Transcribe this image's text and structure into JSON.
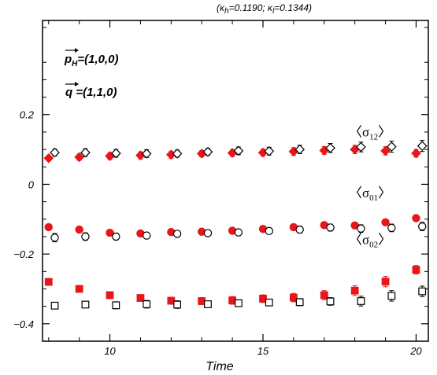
{
  "chart_data": {
    "type": "scatter",
    "title": "",
    "subtitle": {
      "prefix": "(κ",
      "h_sub": "h",
      "h_val": "=0.1190;  κ",
      "l_sub": "l",
      "l_val": "=0.1344)"
    },
    "xlabel": "Time",
    "ylabel": "",
    "xlim": [
      7.8,
      20.4
    ],
    "ylim": [
      -0.45,
      0.47
    ],
    "x_ticks": [
      10,
      15,
      20
    ],
    "y_ticks": [
      -0.4,
      -0.2,
      0,
      0.2
    ],
    "x_tick_labels": [
      "10",
      "15",
      "20"
    ],
    "y_tick_labels": [
      "−0.4",
      "−0.2",
      "0",
      "0.2"
    ],
    "grid": false,
    "legend": "none",
    "annotations": {
      "p": {
        "vec": "p",
        "sub": "H",
        "value": "=(1,0,0)"
      },
      "q": {
        "vec": "q",
        "value": " =(1,1,0)"
      }
    },
    "group_labels": [
      {
        "sigma_sub": "12",
        "y": 0.137
      },
      {
        "sigma_sub": "01",
        "y": -0.037
      },
      {
        "sigma_sub": "02",
        "y": -0.172
      }
    ],
    "colors": {
      "red": "#e8151b",
      "black": "#000000"
    },
    "series": [
      {
        "marker": "diamond",
        "fill": "red",
        "x_offset": 0,
        "x": [
          8,
          9,
          10,
          11,
          12,
          13,
          14,
          15,
          16,
          17,
          18,
          19,
          20
        ],
        "y": [
          0.075,
          0.078,
          0.081,
          0.083,
          0.085,
          0.088,
          0.09,
          0.091,
          0.094,
          0.097,
          0.1,
          0.096,
          0.089
        ],
        "err": [
          0.007,
          0.009,
          0.01,
          0.01,
          0.01,
          0.009,
          0.01,
          0.01,
          0.011,
          0.011,
          0.012,
          0.012,
          0.011
        ]
      },
      {
        "marker": "diamond",
        "fill": "open",
        "x_offset": 0.2,
        "x": [
          8,
          9,
          10,
          11,
          12,
          13,
          14,
          15,
          16,
          17,
          18,
          19,
          20
        ],
        "y": [
          0.091,
          0.091,
          0.089,
          0.088,
          0.088,
          0.093,
          0.096,
          0.095,
          0.1,
          0.104,
          0.107,
          0.108,
          0.11
        ],
        "err": [
          0.01,
          0.011,
          0.011,
          0.011,
          0.01,
          0.01,
          0.011,
          0.011,
          0.012,
          0.013,
          0.014,
          0.016,
          0.016
        ]
      },
      {
        "marker": "circle",
        "fill": "red",
        "x_offset": 0,
        "x": [
          8,
          9,
          10,
          11,
          12,
          13,
          14,
          15,
          16,
          17,
          18,
          19,
          20
        ],
        "y": [
          -0.123,
          -0.13,
          -0.139,
          -0.141,
          -0.137,
          -0.136,
          -0.133,
          -0.128,
          -0.123,
          -0.117,
          -0.118,
          -0.109,
          -0.097
        ],
        "err": [
          0.006,
          0.007,
          0.007,
          0.007,
          0.007,
          0.007,
          0.007,
          0.007,
          0.007,
          0.007,
          0.008,
          0.008,
          0.008
        ]
      },
      {
        "marker": "circle",
        "fill": "open",
        "x_offset": 0.2,
        "x": [
          8,
          9,
          10,
          11,
          12,
          13,
          14,
          15,
          16,
          17,
          18,
          19,
          20
        ],
        "y": [
          -0.153,
          -0.15,
          -0.15,
          -0.147,
          -0.142,
          -0.14,
          -0.138,
          -0.134,
          -0.13,
          -0.124,
          -0.127,
          -0.125,
          -0.121
        ],
        "err": [
          0.012,
          0.011,
          0.01,
          0.009,
          0.009,
          0.009,
          0.009,
          0.009,
          0.01,
          0.01,
          0.011,
          0.011,
          0.012
        ]
      },
      {
        "marker": "square",
        "fill": "red",
        "x_offset": 0,
        "x": [
          8,
          9,
          10,
          11,
          12,
          13,
          14,
          15,
          16,
          17,
          18,
          19,
          20
        ],
        "y": [
          -0.28,
          -0.3,
          -0.318,
          -0.326,
          -0.334,
          -0.335,
          -0.333,
          -0.328,
          -0.325,
          -0.318,
          -0.305,
          -0.279,
          -0.245
        ],
        "err": [
          0.006,
          0.007,
          0.008,
          0.009,
          0.01,
          0.01,
          0.011,
          0.011,
          0.012,
          0.013,
          0.014,
          0.015,
          0.012
        ]
      },
      {
        "marker": "square",
        "fill": "open",
        "x_offset": 0.2,
        "x": [
          8,
          9,
          10,
          11,
          12,
          13,
          14,
          15,
          16,
          17,
          18,
          19,
          20
        ],
        "y": [
          -0.348,
          -0.345,
          -0.347,
          -0.344,
          -0.345,
          -0.344,
          -0.341,
          -0.339,
          -0.338,
          -0.336,
          -0.335,
          -0.32,
          -0.307
        ],
        "err": [
          0.007,
          0.008,
          0.01,
          0.011,
          0.011,
          0.009,
          0.008,
          0.008,
          0.01,
          0.011,
          0.014,
          0.015,
          0.015
        ]
      }
    ]
  }
}
